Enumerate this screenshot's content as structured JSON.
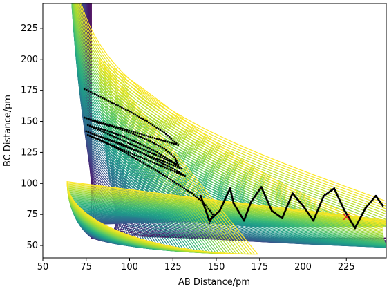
{
  "chart_data": {
    "type": "contour",
    "title": "",
    "xlabel": "AB Distance/pm",
    "ylabel": "BC Distance/pm",
    "xlim": [
      50,
      248
    ],
    "ylim": [
      40,
      245
    ],
    "xticks": [
      50,
      75,
      100,
      125,
      150,
      175,
      200,
      225
    ],
    "yticks": [
      50,
      75,
      100,
      125,
      150,
      175,
      200,
      225
    ],
    "grid": false,
    "legend": "none",
    "contour": {
      "colormap": "viridis",
      "level_count": 60,
      "surface": "symmetric potential energy surface with asymptotes near AB = 74 pm and BC = 74 pm"
    },
    "trajectory": {
      "color": "#000000",
      "marker": "dot",
      "start_ab": [
        74,
        74,
        75,
        75,
        74,
        76
      ],
      "start_bc": [
        176,
        154,
        148,
        145,
        140,
        137
      ],
      "entrance_points": [
        [
          74,
          176
        ],
        [
          80,
          172
        ],
        [
          90,
          165
        ],
        [
          100,
          158
        ],
        [
          110,
          150
        ],
        [
          120,
          141
        ],
        [
          128,
          131
        ],
        [
          74,
          153
        ],
        [
          82,
          149
        ],
        [
          92,
          145
        ],
        [
          102,
          140
        ],
        [
          112,
          134
        ],
        [
          120,
          128
        ],
        [
          126,
          121
        ],
        [
          128,
          115
        ],
        [
          76,
          147
        ],
        [
          86,
          143
        ],
        [
          96,
          138
        ],
        [
          106,
          132
        ],
        [
          116,
          125
        ],
        [
          124,
          118
        ],
        [
          130,
          112
        ],
        [
          75,
          142
        ],
        [
          85,
          137
        ],
        [
          95,
          132
        ],
        [
          105,
          126
        ],
        [
          115,
          119
        ],
        [
          125,
          112
        ],
        [
          132,
          106
        ],
        [
          76,
          139
        ],
        [
          86,
          133
        ],
        [
          96,
          126
        ],
        [
          106,
          118
        ],
        [
          116,
          110
        ],
        [
          126,
          101
        ],
        [
          136,
          92
        ],
        [
          143,
          84
        ],
        [
          148,
          75
        ],
        [
          146,
          68
        ]
      ],
      "exit_points": [
        [
          141,
          90
        ],
        [
          146,
          70
        ],
        [
          152,
          78
        ],
        [
          158,
          96
        ],
        [
          160,
          84
        ],
        [
          166,
          70
        ],
        [
          170,
          85
        ],
        [
          176,
          97
        ],
        [
          182,
          78
        ],
        [
          188,
          72
        ],
        [
          194,
          92
        ],
        [
          200,
          82
        ],
        [
          206,
          70
        ],
        [
          212,
          90
        ],
        [
          218,
          96
        ],
        [
          224,
          78
        ],
        [
          230,
          64
        ],
        [
          236,
          80
        ],
        [
          242,
          90
        ],
        [
          246,
          82
        ]
      ],
      "end_marker": {
        "ab": 225,
        "bc": 73,
        "color": "#d62728",
        "symbol": "x"
      }
    }
  }
}
